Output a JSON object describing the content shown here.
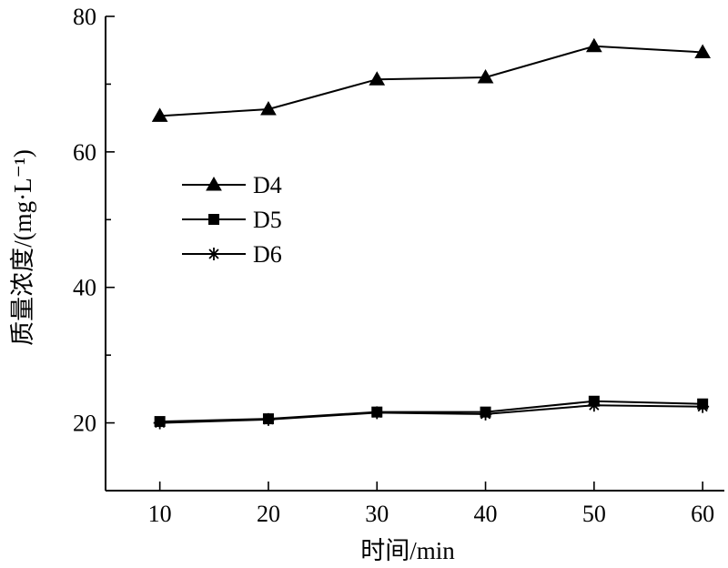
{
  "chart_data": {
    "type": "line",
    "x": [
      10,
      20,
      30,
      40,
      50,
      60
    ],
    "xlabel": "时间/min",
    "ylabel": "质量浓度/(mg·L⁻¹)",
    "xlim": [
      5,
      62
    ],
    "ylim": [
      10,
      80
    ],
    "xticks": [
      10,
      20,
      30,
      40,
      50,
      60
    ],
    "yticks": [
      20,
      40,
      60,
      80
    ],
    "legend_position": "left",
    "grid": false,
    "series": [
      {
        "name": "D4",
        "marker": "triangle",
        "values": [
          65.3,
          66.3,
          70.7,
          71.0,
          75.6,
          74.7
        ]
      },
      {
        "name": "D5",
        "marker": "square",
        "values": [
          20.2,
          20.6,
          21.6,
          21.6,
          23.2,
          22.8
        ]
      },
      {
        "name": "D6",
        "marker": "asterisk",
        "values": [
          20.0,
          20.5,
          21.5,
          21.3,
          22.6,
          22.4
        ]
      }
    ]
  }
}
